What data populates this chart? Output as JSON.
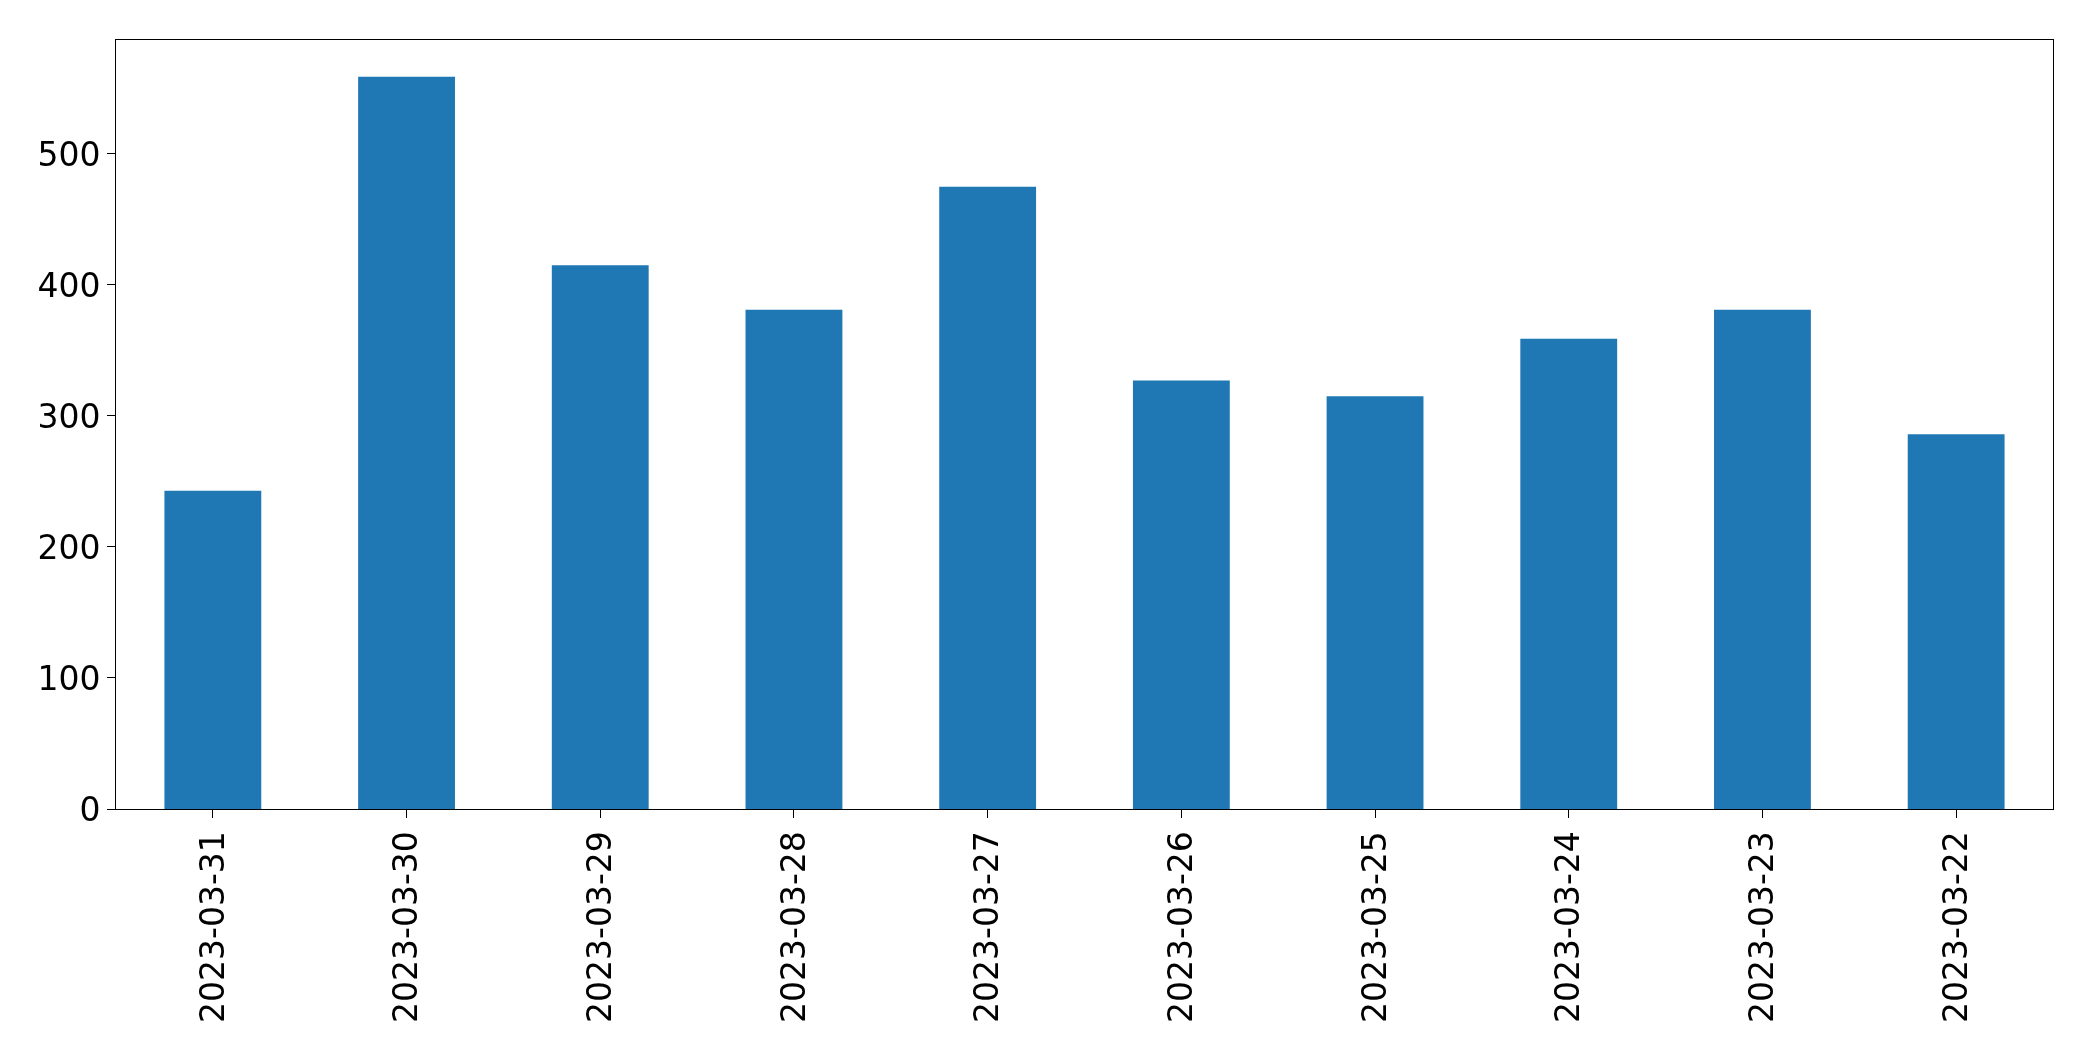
{
  "chart_data": {
    "type": "bar",
    "categories": [
      "2023-03-31",
      "2023-03-30",
      "2023-03-29",
      "2023-03-28",
      "2023-03-27",
      "2023-03-26",
      "2023-03-25",
      "2023-03-24",
      "2023-03-23",
      "2023-03-22"
    ],
    "values": [
      243,
      559,
      415,
      381,
      475,
      327,
      315,
      359,
      381,
      286
    ],
    "color": "#1f77b4",
    "ylim": [
      0,
      587
    ],
    "yticks": [
      0,
      100,
      200,
      300,
      400,
      500
    ],
    "grid": false
  }
}
